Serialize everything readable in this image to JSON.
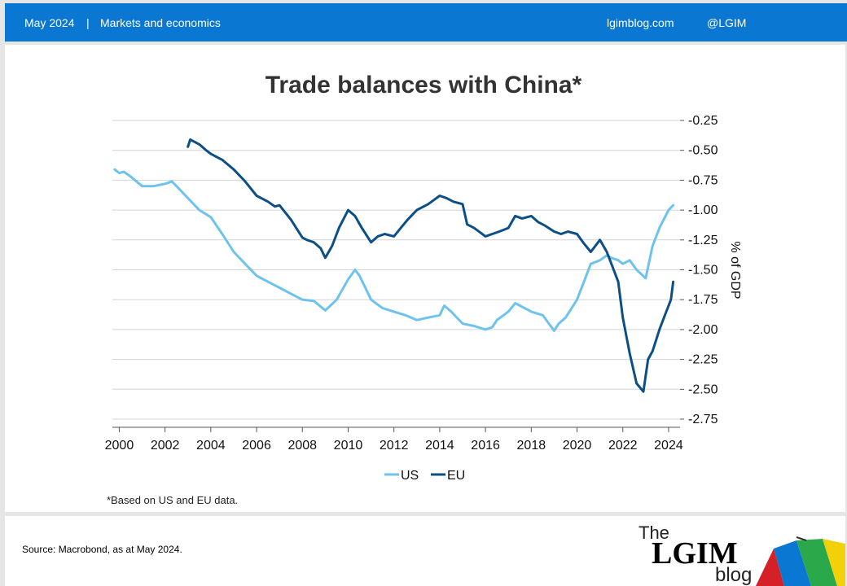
{
  "header": {
    "date": "May 2024",
    "separator": "|",
    "category": "Markets and economics",
    "site": "lgimblog.com",
    "handle": "@LGIM"
  },
  "footnote": "*Based on US and EU data.",
  "footer": {
    "source": "Source: Macrobond, as at May 2024.",
    "logo": {
      "line1": "The",
      "line2": "LGIM",
      "line3": "blog"
    }
  },
  "colors": {
    "header": "#0a78d2",
    "us": "#6ec3ee",
    "eu": "#0c4f87",
    "title": "#333333"
  },
  "chart_data": {
    "type": "line",
    "title": "Trade balances with China*",
    "ylabel": "% of GDP",
    "xlabel": "",
    "xlim": [
      1999.7,
      2024.5
    ],
    "ylim": [
      -2.75,
      -0.25
    ],
    "x_ticks": [
      "2000",
      "2002",
      "2004",
      "2006",
      "2008",
      "2010",
      "2012",
      "2014",
      "2016",
      "2018",
      "2020",
      "2022",
      "2024"
    ],
    "y_ticks": [
      "-0.25",
      "-0.50",
      "-0.75",
      "-1.00",
      "-1.25",
      "-1.50",
      "-1.75",
      "-2.00",
      "-2.25",
      "-2.50",
      "-2.75"
    ],
    "y_tick_values": [
      -0.25,
      -0.5,
      -0.75,
      -1.0,
      -1.25,
      -1.5,
      -1.75,
      -2.0,
      -2.25,
      -2.5,
      -2.75
    ],
    "y_axis_side": "right",
    "grid": true,
    "legend": "bottom-center",
    "series": [
      {
        "name": "US",
        "x": [
          1999.8,
          2000.0,
          2000.2,
          2000.5,
          2001.0,
          2001.5,
          2002.0,
          2002.3,
          2002.5,
          2003.0,
          2003.5,
          2004.0,
          2004.5,
          2005.0,
          2005.5,
          2006.0,
          2006.5,
          2007.0,
          2007.5,
          2008.0,
          2008.5,
          2009.0,
          2009.5,
          2010.0,
          2010.3,
          2010.5,
          2011.0,
          2011.5,
          2012.0,
          2012.5,
          2013.0,
          2013.5,
          2014.0,
          2014.2,
          2014.5,
          2015.0,
          2015.5,
          2016.0,
          2016.3,
          2016.5,
          2017.0,
          2017.3,
          2017.5,
          2018.0,
          2018.5,
          2019.0,
          2019.2,
          2019.5,
          2020.0,
          2020.3,
          2020.6,
          2021.0,
          2021.3,
          2021.5,
          2021.8,
          2022.0,
          2022.3,
          2022.6,
          2023.0,
          2023.3,
          2023.6,
          2024.0,
          2024.2
        ],
        "values": [
          -0.66,
          -0.69,
          -0.68,
          -0.72,
          -0.8,
          -0.8,
          -0.78,
          -0.76,
          -0.8,
          -0.9,
          -1.0,
          -1.06,
          -1.2,
          -1.35,
          -1.45,
          -1.55,
          -1.6,
          -1.65,
          -1.7,
          -1.75,
          -1.76,
          -1.84,
          -1.75,
          -1.58,
          -1.5,
          -1.55,
          -1.75,
          -1.82,
          -1.85,
          -1.88,
          -1.92,
          -1.9,
          -1.88,
          -1.8,
          -1.85,
          -1.95,
          -1.97,
          -2.0,
          -1.98,
          -1.92,
          -1.85,
          -1.78,
          -1.8,
          -1.85,
          -1.88,
          -2.01,
          -1.95,
          -1.9,
          -1.75,
          -1.6,
          -1.45,
          -1.42,
          -1.38,
          -1.4,
          -1.42,
          -1.45,
          -1.42,
          -1.5,
          -1.57,
          -1.3,
          -1.15,
          -1.0,
          -0.96
        ]
      },
      {
        "name": "EU",
        "x": [
          2003.0,
          2003.1,
          2003.5,
          2003.8,
          2004.0,
          2004.5,
          2005.0,
          2005.5,
          2006.0,
          2006.5,
          2006.8,
          2007.0,
          2007.5,
          2008.0,
          2008.2,
          2008.5,
          2008.8,
          2009.0,
          2009.3,
          2009.6,
          2010.0,
          2010.3,
          2010.6,
          2011.0,
          2011.3,
          2011.6,
          2012.0,
          2012.3,
          2012.6,
          2013.0,
          2013.5,
          2014.0,
          2014.3,
          2014.6,
          2015.0,
          2015.2,
          2015.5,
          2016.0,
          2016.3,
          2016.6,
          2017.0,
          2017.3,
          2017.6,
          2018.0,
          2018.3,
          2018.6,
          2019.0,
          2019.3,
          2019.6,
          2020.0,
          2020.3,
          2020.6,
          2021.0,
          2021.3,
          2021.6,
          2021.8,
          2022.0,
          2022.3,
          2022.6,
          2022.9,
          2023.1,
          2023.3,
          2023.6,
          2023.9,
          2024.1,
          2024.2
        ],
        "values": [
          -0.47,
          -0.41,
          -0.45,
          -0.5,
          -0.53,
          -0.58,
          -0.66,
          -0.76,
          -0.88,
          -0.93,
          -0.97,
          -0.96,
          -1.08,
          -1.23,
          -1.25,
          -1.27,
          -1.32,
          -1.4,
          -1.3,
          -1.15,
          -1.0,
          -1.05,
          -1.15,
          -1.27,
          -1.22,
          -1.2,
          -1.22,
          -1.15,
          -1.08,
          -1.0,
          -0.95,
          -0.88,
          -0.9,
          -0.93,
          -0.95,
          -1.12,
          -1.15,
          -1.22,
          -1.2,
          -1.18,
          -1.15,
          -1.05,
          -1.07,
          -1.05,
          -1.1,
          -1.13,
          -1.18,
          -1.2,
          -1.18,
          -1.2,
          -1.28,
          -1.35,
          -1.25,
          -1.35,
          -1.5,
          -1.6,
          -1.9,
          -2.2,
          -2.45,
          -2.52,
          -2.25,
          -2.18,
          -2.0,
          -1.85,
          -1.75,
          -1.6
        ]
      }
    ]
  }
}
